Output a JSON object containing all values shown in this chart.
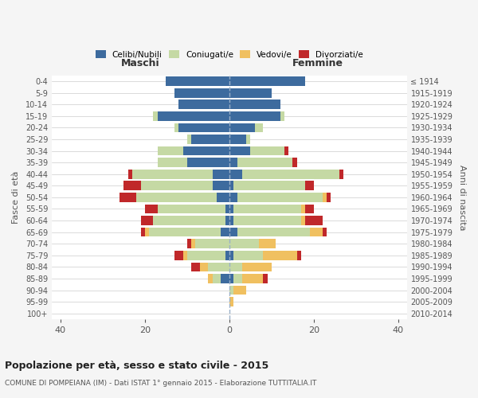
{
  "age_groups": [
    "0-4",
    "5-9",
    "10-14",
    "15-19",
    "20-24",
    "25-29",
    "30-34",
    "35-39",
    "40-44",
    "45-49",
    "50-54",
    "55-59",
    "60-64",
    "65-69",
    "70-74",
    "75-79",
    "80-84",
    "85-89",
    "90-94",
    "95-99",
    "100+"
  ],
  "birth_years": [
    "2010-2014",
    "2005-2009",
    "2000-2004",
    "1995-1999",
    "1990-1994",
    "1985-1989",
    "1980-1984",
    "1975-1979",
    "1970-1974",
    "1965-1969",
    "1960-1964",
    "1955-1959",
    "1950-1954",
    "1945-1949",
    "1940-1944",
    "1935-1939",
    "1930-1934",
    "1925-1929",
    "1920-1924",
    "1915-1919",
    "≤ 1914"
  ],
  "maschi": {
    "celibi": [
      15,
      13,
      12,
      17,
      12,
      9,
      11,
      10,
      4,
      4,
      3,
      1,
      1,
      2,
      0,
      1,
      0,
      2,
      0,
      0,
      0
    ],
    "coniugati": [
      0,
      0,
      0,
      1,
      1,
      1,
      6,
      7,
      19,
      17,
      19,
      16,
      17,
      17,
      8,
      9,
      5,
      2,
      0,
      0,
      0
    ],
    "vedovi": [
      0,
      0,
      0,
      0,
      0,
      0,
      0,
      0,
      0,
      0,
      0,
      0,
      0,
      1,
      1,
      1,
      2,
      1,
      0,
      0,
      0
    ],
    "divorziati": [
      0,
      0,
      0,
      0,
      0,
      0,
      0,
      0,
      1,
      4,
      4,
      3,
      3,
      1,
      1,
      2,
      2,
      0,
      0,
      0,
      0
    ]
  },
  "femmine": {
    "nubili": [
      18,
      10,
      12,
      12,
      6,
      4,
      5,
      2,
      3,
      1,
      2,
      1,
      1,
      2,
      0,
      1,
      0,
      1,
      0,
      0,
      0
    ],
    "coniugate": [
      0,
      0,
      0,
      1,
      2,
      1,
      8,
      13,
      23,
      17,
      20,
      16,
      16,
      17,
      7,
      7,
      3,
      2,
      1,
      0,
      0
    ],
    "vedove": [
      0,
      0,
      0,
      0,
      0,
      0,
      0,
      0,
      0,
      0,
      1,
      1,
      1,
      3,
      4,
      8,
      7,
      5,
      3,
      1,
      0
    ],
    "divorziate": [
      0,
      0,
      0,
      0,
      0,
      0,
      1,
      1,
      1,
      2,
      1,
      2,
      4,
      1,
      0,
      1,
      0,
      1,
      0,
      0,
      0
    ]
  },
  "colors": {
    "celibi": "#3d6b9e",
    "coniugati": "#c5d9a4",
    "vedovi": "#f0c060",
    "divorziati": "#c0282a"
  },
  "xlim": 42,
  "title": "Popolazione per età, sesso e stato civile - 2015",
  "subtitle": "COMUNE DI POMPEIANA (IM) - Dati ISTAT 1° gennaio 2015 - Elaborazione TUTTITALIA.IT",
  "ylabel_left": "Fasce di età",
  "ylabel_right": "Anni di nascita",
  "bg_color": "#f5f5f5",
  "plot_bg": "#ffffff"
}
